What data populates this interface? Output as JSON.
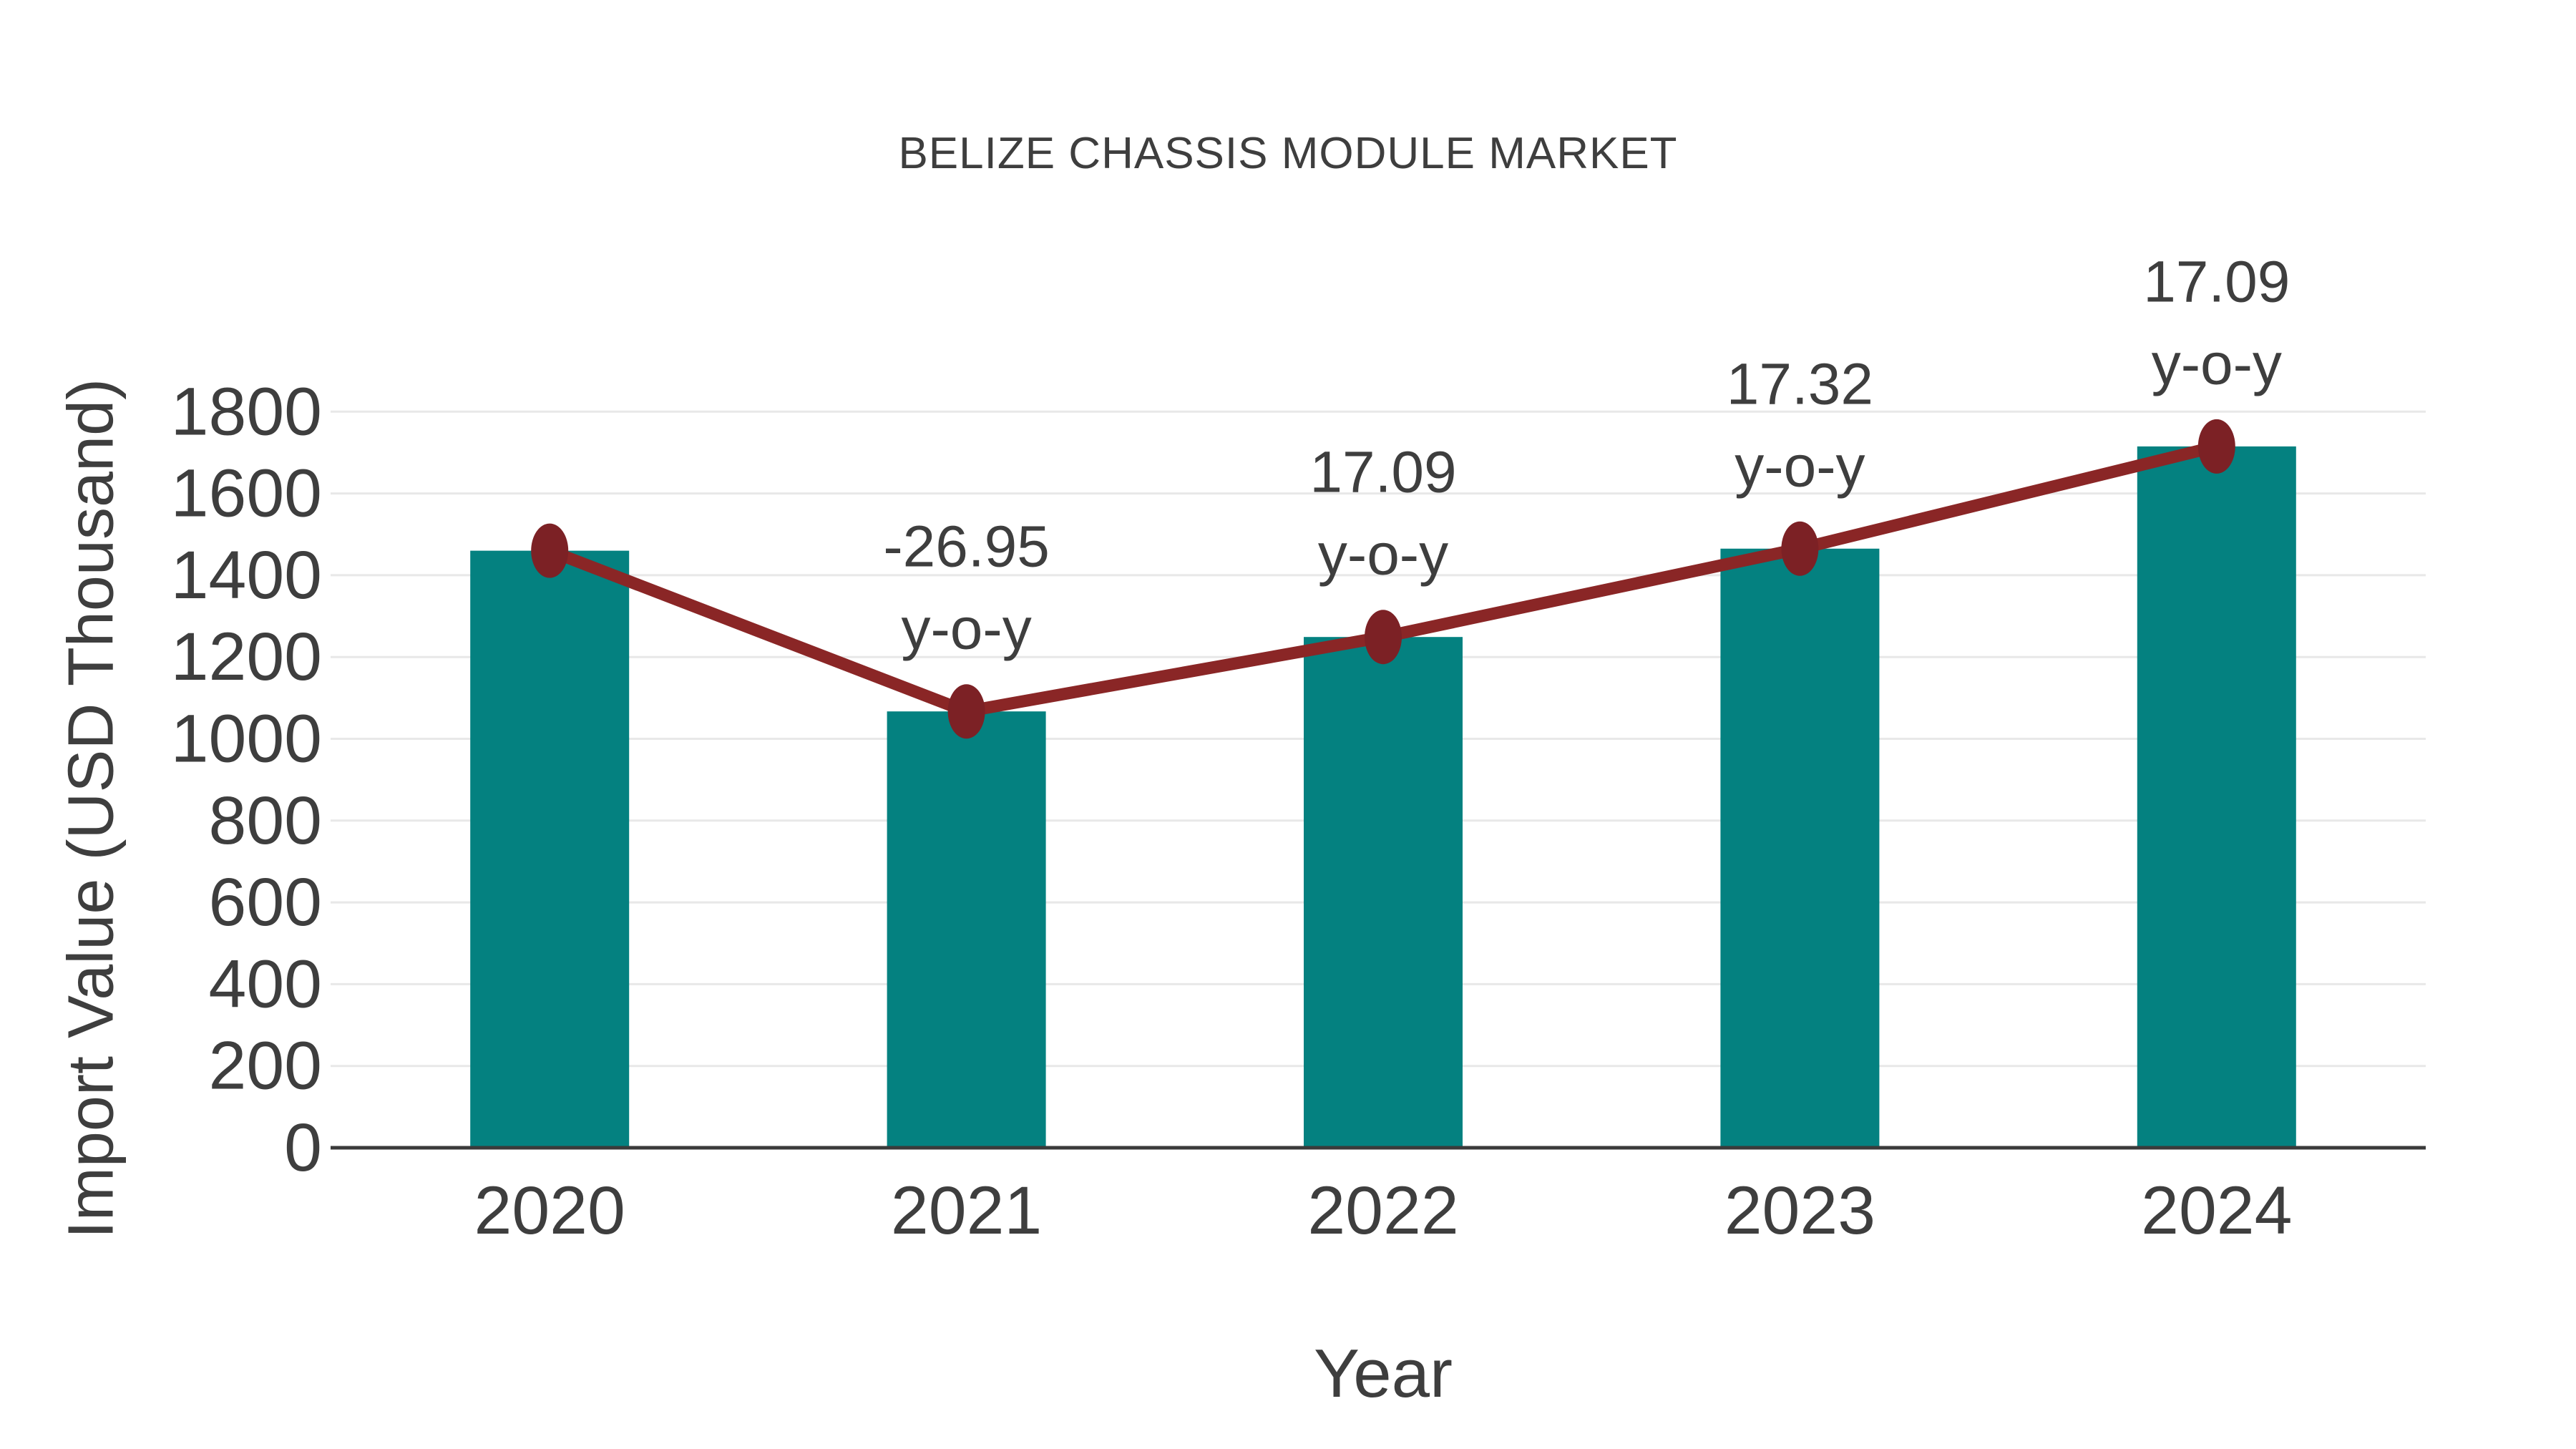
{
  "chart": {
    "title": "BELIZE CHASSIS MODULE MARKET",
    "x_axis_title": "Year",
    "y_axis_title": "Import Value (USD Thousand)"
  },
  "chart_data": {
    "type": "bar",
    "title": "BELIZE CHASSIS MODULE MARKET",
    "xlabel": "Year",
    "ylabel": "Import Value (USD Thousand)",
    "categories": [
      "2020",
      "2021",
      "2022",
      "2023",
      "2024"
    ],
    "series": [
      {
        "name": "Import Value (USD Thousand)",
        "type": "bar",
        "color": "#048180",
        "values": [
          1460,
          1067,
          1249,
          1465,
          1715
        ]
      },
      {
        "name": "y-o-y growth (%)",
        "type": "line",
        "color": "#8a2626",
        "marker_color": "#7c2125",
        "values": [
          null,
          -26.95,
          17.09,
          17.32,
          17.09
        ],
        "label_suffix": "y-o-y",
        "plotted_on": "bar-tops"
      }
    ],
    "ylim": [
      0,
      1800
    ],
    "y_ticks": [
      0,
      200,
      400,
      600,
      800,
      1000,
      1200,
      1400,
      1600,
      1800
    ],
    "grid": "horizontal",
    "legend": "none"
  },
  "style": {
    "background": "#ffffff",
    "text_color": "#3e3e3e",
    "grid_color": "#e8e8e8",
    "axis_color": "#3a3a3a"
  }
}
